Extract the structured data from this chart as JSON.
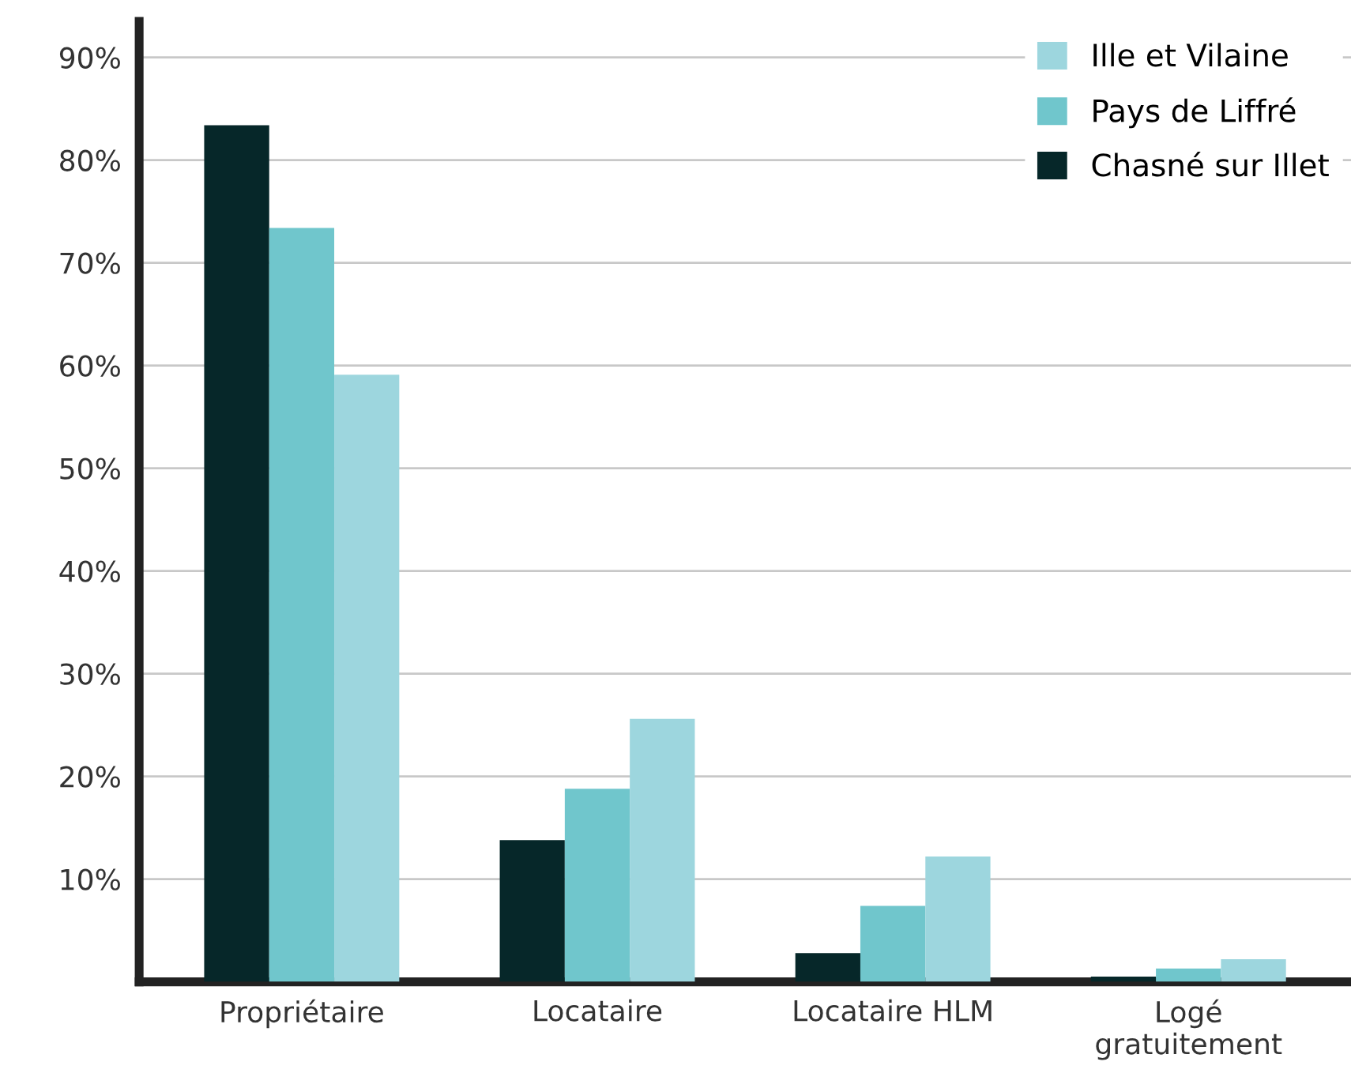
{
  "chart_data": {
    "type": "bar",
    "categories": [
      "Propriétaire",
      "Locataire",
      "Locataire HLM",
      "Logé\ngratuitement"
    ],
    "series": [
      {
        "name": "Chasné sur Illet",
        "color": "#062729",
        "values": [
          83.4,
          13.8,
          2.8,
          0.5
        ]
      },
      {
        "name": "Pays de Liffré",
        "color": "#70c6cc",
        "values": [
          73.4,
          18.8,
          7.4,
          1.3
        ]
      },
      {
        "name": "Ille et Vilaine",
        "color": "#9dd6de",
        "values": [
          59.1,
          25.6,
          12.2,
          2.2
        ]
      }
    ],
    "ylim": [
      0,
      93.5
    ],
    "yticks": [
      {
        "value": 10,
        "label": "10%"
      },
      {
        "value": 20,
        "label": "20%"
      },
      {
        "value": 30,
        "label": "30%"
      },
      {
        "value": 40,
        "label": "40%"
      },
      {
        "value": 50,
        "label": "50%"
      },
      {
        "value": 60,
        "label": "60%"
      },
      {
        "value": 70,
        "label": "70%"
      },
      {
        "value": 80,
        "label": "80%"
      },
      {
        "value": 90,
        "label": "90%"
      }
    ],
    "grid": "y",
    "legend": "top right"
  }
}
